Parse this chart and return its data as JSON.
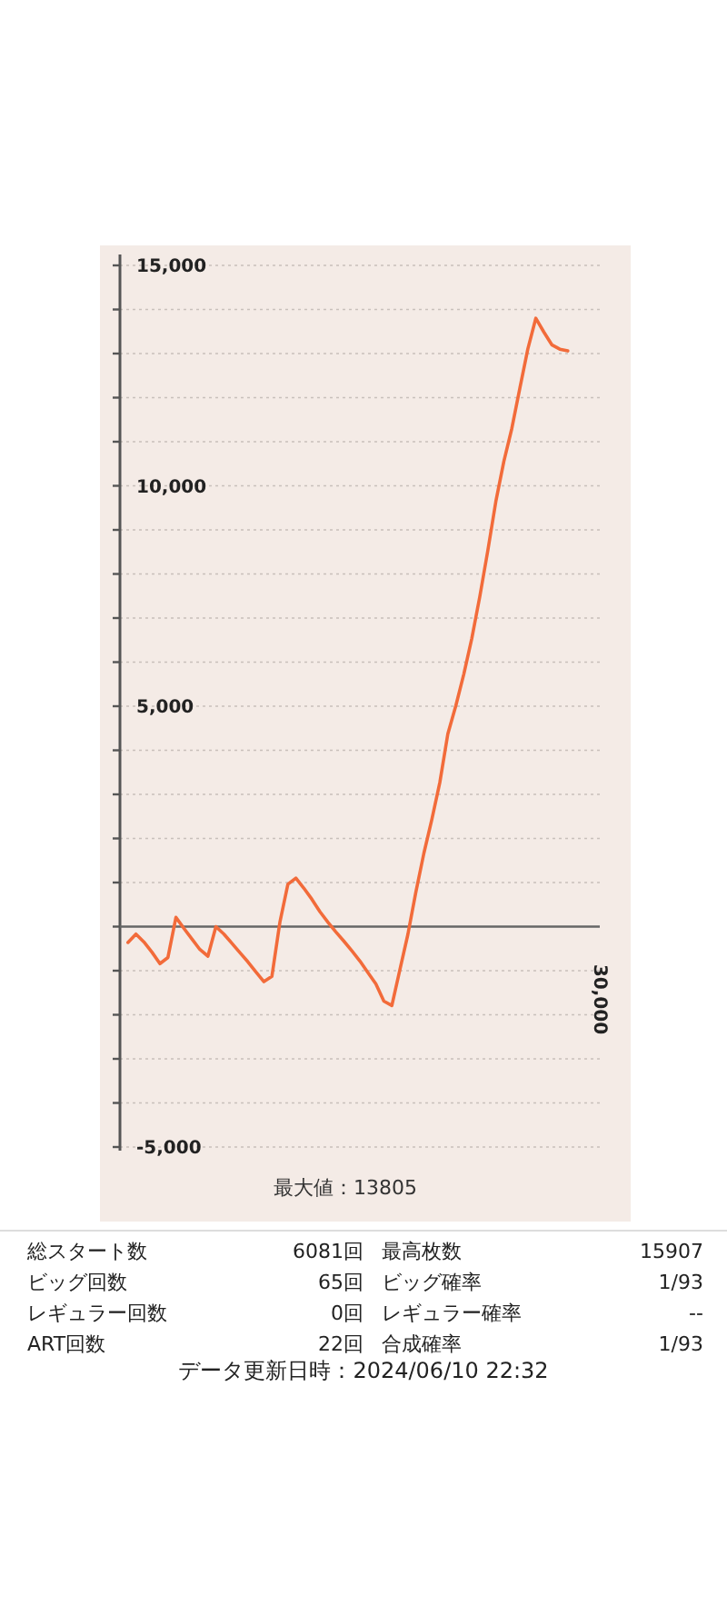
{
  "chart_data": {
    "type": "line",
    "categories": [
      null,
      null,
      null,
      null,
      null,
      null,
      null,
      null,
      null,
      null,
      null,
      null,
      null,
      null,
      null,
      null,
      null,
      null,
      null,
      null,
      null,
      null,
      null,
      null,
      null,
      null,
      null,
      null,
      null,
      null,
      null,
      null,
      null,
      null,
      null,
      null,
      null,
      null,
      null,
      null,
      null,
      null,
      null,
      null,
      null,
      null,
      null,
      null,
      null,
      null,
      null,
      null,
      null,
      null,
      null,
      null
    ],
    "series": [
      {
        "color": "#f26b3a",
        "values": [
          -360,
          -170,
          -350,
          -580,
          -840,
          -700,
          210,
          -40,
          -280,
          -520,
          -670,
          0,
          -170,
          -380,
          -590,
          -800,
          -1030,
          -1250,
          -1130,
          100,
          960,
          1100,
          870,
          620,
          340,
          100,
          -120,
          -330,
          -550,
          -780,
          -1040,
          -1300,
          -1690,
          -1790,
          -980,
          -180,
          780,
          1660,
          2430,
          3270,
          4370,
          5010,
          5730,
          6540,
          7490,
          8530,
          9640,
          10550,
          11300,
          12210,
          13100,
          13800,
          13490,
          13200,
          13100,
          13060
        ]
      }
    ],
    "ylim": [
      -5000,
      15000
    ],
    "yticks": [
      {
        "value": -5000,
        "label": "-5,000"
      },
      {
        "value": -4000,
        "label": null
      },
      {
        "value": -3000,
        "label": null
      },
      {
        "value": -2000,
        "label": null
      },
      {
        "value": -1000,
        "label": null
      },
      {
        "value": 0,
        "label": null
      },
      {
        "value": 1000,
        "label": null
      },
      {
        "value": 2000,
        "label": null
      },
      {
        "value": 3000,
        "label": null
      },
      {
        "value": 4000,
        "label": null
      },
      {
        "value": 5000,
        "label": "5,000"
      },
      {
        "value": 6000,
        "label": null
      },
      {
        "value": 7000,
        "label": null
      },
      {
        "value": 8000,
        "label": null
      },
      {
        "value": 9000,
        "label": null
      },
      {
        "value": 10000,
        "label": "10,000"
      },
      {
        "value": 11000,
        "label": null
      },
      {
        "value": 12000,
        "label": null
      },
      {
        "value": 13000,
        "label": null
      },
      {
        "value": 14000,
        "label": null
      },
      {
        "value": 15000,
        "label": "15,000"
      }
    ],
    "grid": "y",
    "annotations": [
      "最大値：13805",
      "総スタート数",
      "6081回",
      "最高枚数",
      "15907",
      "ビッグ回数",
      "65回",
      "ビッグ確率",
      "1/93",
      "レギュラー回数",
      "0回",
      "レギュラー確率",
      "--",
      "ART回数",
      "22回",
      "合成確率",
      "1/93",
      "データ更新日時：2024/06/10 22:32",
      "30,000"
    ]
  }
}
